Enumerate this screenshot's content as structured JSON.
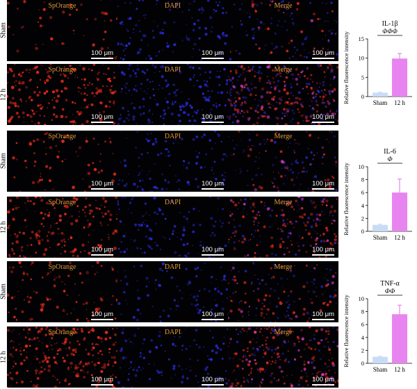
{
  "panel_titles": {
    "spo": "SpOrange",
    "dapi": "DAPI",
    "merge": "Merge"
  },
  "scale_bar": "100 μm",
  "groups": [
    {
      "id": "il1b",
      "rows": [
        {
          "label": "Sham",
          "red": 0.15,
          "blue": 0.55
        },
        {
          "label": "12 h",
          "red": 0.9,
          "blue": 1.0
        }
      ]
    },
    {
      "id": "il6",
      "rows": [
        {
          "label": "Sham",
          "red": 0.25,
          "blue": 0.45
        },
        {
          "label": "12 h",
          "red": 0.75,
          "blue": 0.5
        }
      ]
    },
    {
      "id": "tnfa",
      "rows": [
        {
          "label": "Sham",
          "red": 0.35,
          "blue": 0.4
        },
        {
          "label": "12 h",
          "red": 1.0,
          "blue": 0.5
        }
      ]
    }
  ],
  "colors": {
    "sham_bar": "#c9dcf6",
    "h12_bar": "#e884f0",
    "dapi_dot": "#2b2ee8",
    "spo_dot": "#e82a1c",
    "merge_dot": "#e23fd0",
    "panel_title": "#e89a36"
  },
  "chart_data": [
    {
      "type": "bar",
      "title": "IL-1β",
      "significance": "ΦΦΦ",
      "ylabel": "Relative fluorescence intensity",
      "categories": [
        "Sham",
        "12 h"
      ],
      "values": [
        1.0,
        9.9
      ],
      "errors": [
        0.15,
        1.3
      ],
      "ylim": [
        0,
        15
      ],
      "yticks": [
        0,
        5,
        10,
        15
      ]
    },
    {
      "type": "bar",
      "title": "IL-6",
      "significance": "Φ",
      "ylabel": "Relative fluorescence intensity",
      "categories": [
        "Sham",
        "12 h"
      ],
      "values": [
        1.0,
        6.0
      ],
      "errors": [
        0.1,
        2.1
      ],
      "ylim": [
        0,
        10
      ],
      "yticks": [
        0,
        2,
        4,
        6,
        8,
        10
      ]
    },
    {
      "type": "bar",
      "title": "TNF-α",
      "significance": "ΦΦ",
      "ylabel": "Relative fluorescence intensity",
      "categories": [
        "Sham",
        "12 h"
      ],
      "values": [
        1.0,
        7.6
      ],
      "errors": [
        0.1,
        1.4
      ],
      "ylim": [
        0,
        10
      ],
      "yticks": [
        0,
        2,
        4,
        6,
        8,
        10
      ]
    }
  ]
}
